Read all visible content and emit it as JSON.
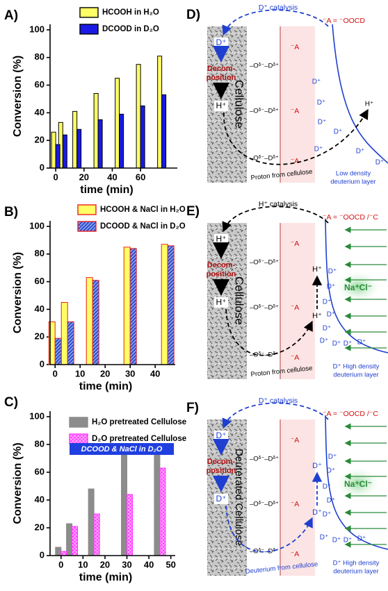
{
  "chart_data": [
    {
      "type": "bar",
      "label": "A)",
      "ylabel": "Conversion (%)",
      "xlabel": "time (min)",
      "x": [
        0,
        5,
        15,
        30,
        45,
        60,
        75
      ],
      "xlim": [
        -4,
        86
      ],
      "xticks": [
        0,
        20,
        40,
        60
      ],
      "ylim": [
        0,
        104
      ],
      "yticks": [
        0,
        20,
        40,
        60,
        80,
        100
      ],
      "series": [
        {
          "name": "HCOOH in H₂O",
          "color": "#ffff66",
          "edgecolor": "#000000",
          "values": [
            26,
            33,
            41,
            54,
            65,
            75,
            81
          ]
        },
        {
          "name": "DCOOD in D₂O",
          "color": "#1a1ae6",
          "edgecolor": "#000000",
          "values": [
            17,
            24,
            28,
            35,
            39,
            45,
            53
          ]
        }
      ]
    },
    {
      "type": "bar",
      "label": "B)",
      "ylabel": "Conversion (%)",
      "xlabel": "time (min)",
      "x": [
        0,
        5,
        15,
        30,
        45
      ],
      "xlim": [
        -2,
        48
      ],
      "xticks": [
        0,
        10,
        20,
        30,
        40
      ],
      "ylim": [
        0,
        104
      ],
      "yticks": [
        0,
        20,
        40,
        60,
        80,
        100
      ],
      "series": [
        {
          "name": "HCOOH & NaCl in H₂O",
          "color": "#ffff66",
          "edgecolor": "#e8201e",
          "values": [
            31,
            45,
            63,
            85,
            87
          ]
        },
        {
          "name": "DCOOD & NaCl in D₂O",
          "color": "#3050d0",
          "edgecolor": "#e8201e",
          "hatch": "diagonal",
          "values": [
            19,
            31,
            61,
            84,
            86
          ]
        }
      ]
    },
    {
      "type": "bar",
      "label": "C)",
      "ylabel": "Conversion (%)",
      "xlabel": "time (min)",
      "annotation": "DCOOD & NaCl in D₂O",
      "x": [
        0,
        5,
        15,
        30,
        45
      ],
      "xlim": [
        -5,
        52
      ],
      "xticks": [
        0,
        10,
        20,
        30,
        40,
        50
      ],
      "ylim": [
        0,
        104
      ],
      "yticks": [
        0,
        20,
        40,
        60,
        80,
        100
      ],
      "series": [
        {
          "name": "H₂O pretreated Cellulose",
          "color": "#8c8c8c",
          "edgecolor": "#8c8c8c",
          "values": [
            6,
            23,
            48,
            75,
            79
          ]
        },
        {
          "name": "D₂O pretreated Cellulose",
          "color": "#ff33ff",
          "edgecolor": "#ff33ff",
          "hatch": "cross",
          "values": [
            3,
            21,
            30,
            44,
            63
          ]
        }
      ]
    }
  ],
  "diagrams": [
    {
      "label": "D)",
      "catalysis": "D⁺ catalysis",
      "anion_def": "⁻A  =  ⁻OOCD",
      "top_ion": "D⁺",
      "decomposition": [
        "Decom-",
        "position"
      ],
      "bottom_ion": "H⁺",
      "substrate": "Cellulose",
      "bonds": [
        "–Oᵟ⁻–Dᵟ⁺",
        "–Oᵟ⁻–Dᵟ⁺",
        "–Oᵟ⁻–Dᵟ⁺"
      ],
      "anions": [
        "⁻A",
        "⁻A",
        "⁻A"
      ],
      "layer_ions": [
        "D⁺",
        "D⁺",
        "D⁺",
        "D⁺",
        "D⁺",
        "D⁺",
        "D⁺"
      ],
      "arrow_ions": [
        "H⁺"
      ],
      "path_label": "Proton from cellulose",
      "layer_label": [
        "Low density",
        "deuterium layer"
      ]
    },
    {
      "label": "E)",
      "catalysis": "H⁺ catalysis",
      "anion_def": "⁻A  =  ⁻OOCD /⁻C",
      "top_ion": "H⁺",
      "decomposition": [
        "Decom-",
        "position"
      ],
      "bottom_ion": "H⁺",
      "substrate": "Cellulose",
      "bonds": [
        "–Oᵟ⁻–Dᵟ⁺",
        "–Oᵟ⁻–Dᵟ⁺",
        "–Oᵟ⁻–Dᵟ⁺"
      ],
      "anions": [
        "⁻A",
        "⁻A",
        "⁻A"
      ],
      "layer_ions": [
        "D⁺",
        "D⁺",
        "D⁺",
        "D⁺",
        "D⁺",
        "D⁺",
        "D⁺",
        "D⁺",
        "D⁺"
      ],
      "arrow_ions": [
        "H⁺",
        "H⁺"
      ],
      "salt": "Na⁺Cl⁻",
      "path_label": "Proton from cellulose",
      "layer_label": [
        "D⁺ High density",
        "deuterium layer"
      ]
    },
    {
      "label": "F)",
      "catalysis": "D⁺ catalysis",
      "anion_def": "⁻A  =  ⁻OOCD /⁻C",
      "top_ion": "D⁺",
      "decomposition": [
        "Decom-",
        "position"
      ],
      "bottom_ion": "D⁺",
      "substrate": "Deuterated Cellulose",
      "bonds": [
        "–Oᵟ⁻–Dᵟ⁺",
        "–Oᵟ⁻–Dᵟ⁺",
        "–Oᵟ⁻–Dᵟ⁺"
      ],
      "anions": [
        "⁻A",
        "⁻A",
        "⁻A"
      ],
      "layer_ions": [
        "D⁺",
        "D⁺",
        "D⁺",
        "D⁺",
        "D⁺",
        "D⁺",
        "D⁺",
        "D⁺",
        "D⁺"
      ],
      "arrow_ions": [
        "D⁺",
        "D⁺"
      ],
      "salt": "Na⁺Cl⁻",
      "path_label": "Deuterium from cellulose",
      "layer_label": [
        "D⁺ High density",
        "deuterium layer"
      ]
    }
  ]
}
